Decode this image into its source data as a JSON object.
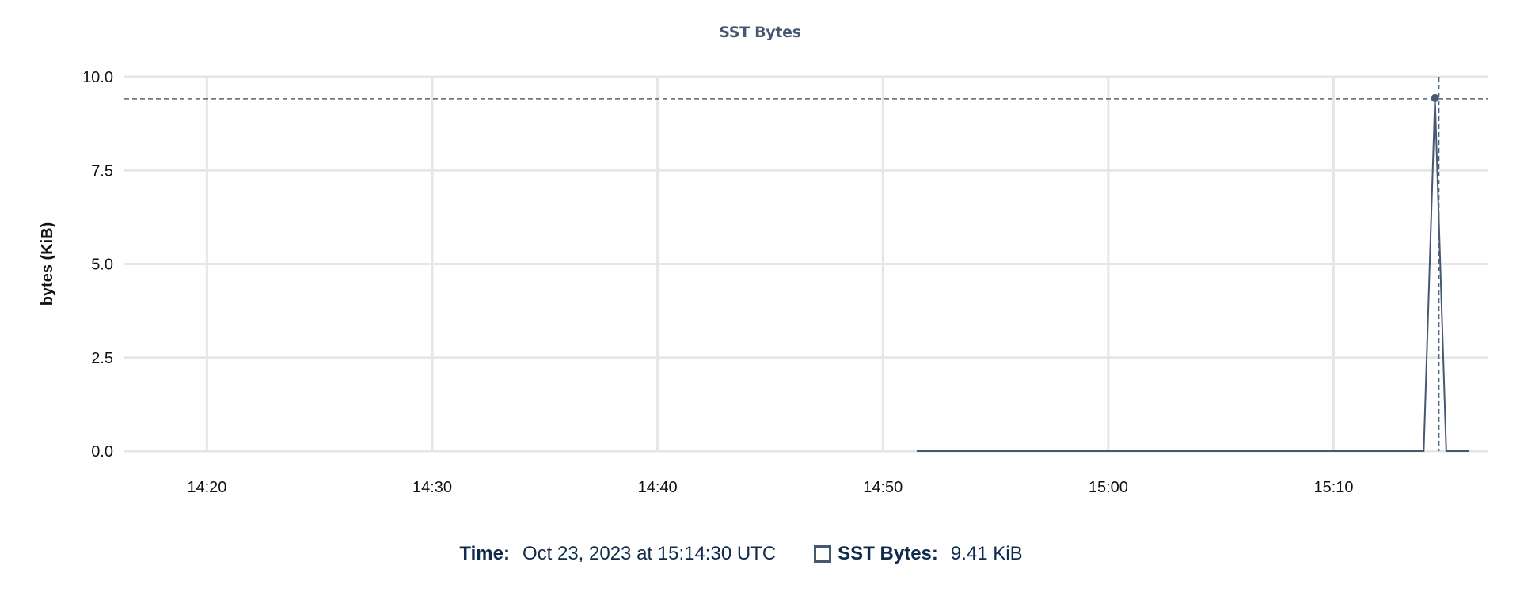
{
  "chart_data": {
    "type": "line",
    "title": "SST Bytes",
    "xlabel": "",
    "ylabel": "bytes (KiB)",
    "xlim": [
      "14:16:20",
      "15:16:50"
    ],
    "ylim": [
      0,
      10
    ],
    "x_ticks": [
      "14:20",
      "14:30",
      "14:40",
      "14:50",
      "15:00",
      "15:10"
    ],
    "y_ticks": [
      "0.0",
      "2.5",
      "5.0",
      "7.5",
      "10.0"
    ],
    "grid": true,
    "series": [
      {
        "name": "SST Bytes",
        "color": "#475872",
        "points": [
          {
            "x": "14:51:30",
            "y": 0
          },
          {
            "x": "15:14:00",
            "y": 0
          },
          {
            "x": "15:14:30",
            "y": 9.41
          },
          {
            "x": "15:15:00",
            "y": 0
          },
          {
            "x": "15:16:00",
            "y": 0
          }
        ]
      }
    ],
    "hover": {
      "x": "15:14:30",
      "y": 9.41
    }
  },
  "legend": {
    "time_label": "Time:",
    "time_value": "Oct 23, 2023 at 15:14:30 UTC",
    "series_label": "SST Bytes:",
    "series_value": "9.41 KiB"
  }
}
